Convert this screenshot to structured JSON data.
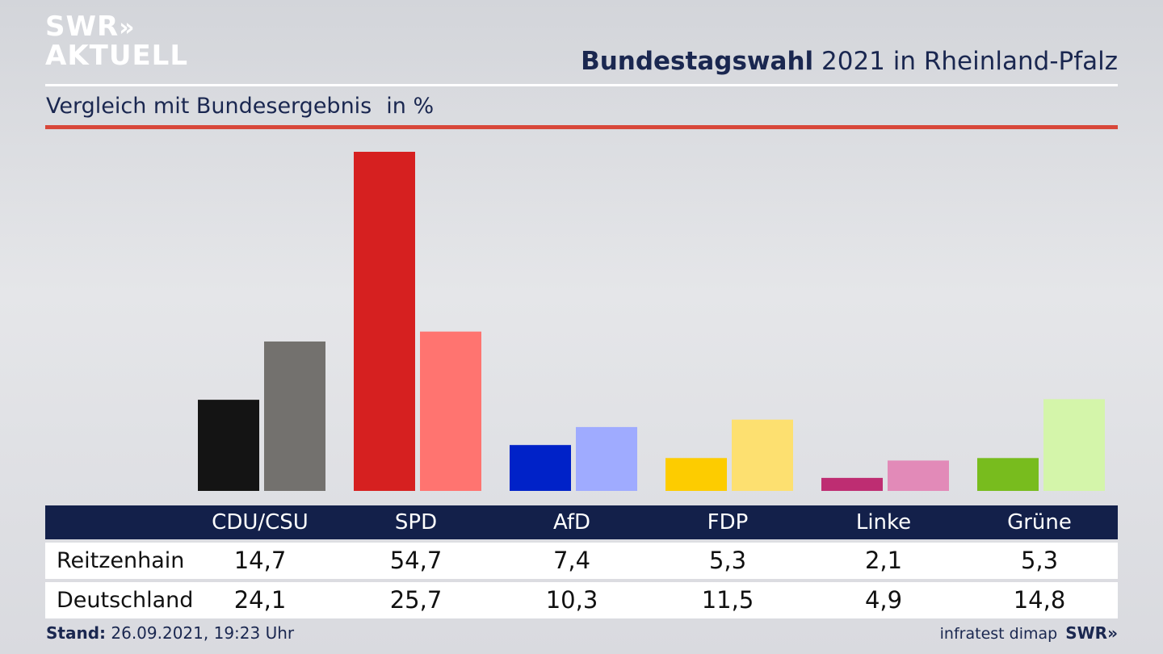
{
  "brand": {
    "logo_line1": "SWR",
    "logo_chevrons": "»",
    "logo_line2": "AKTUELL"
  },
  "header": {
    "title_bold": "Bundestagswahl",
    "title_rest": " 2021 in Rheinland-Pfalz"
  },
  "subtitle": {
    "text": "Vergleich mit Bundesergebnis",
    "unit": "in %"
  },
  "colors": {
    "title": "#1a2750",
    "red_rule": "#d8473a",
    "table_header": "#13204a",
    "local": [
      "#141414",
      "#d62020",
      "#0022c8",
      "#fdcc00",
      "#be2d72",
      "#78bc1e"
    ],
    "national": [
      "#73716e",
      "#ff7470",
      "#9fabff",
      "#fde070",
      "#e28ab8",
      "#d4f5aa"
    ]
  },
  "chart_data": {
    "type": "bar",
    "categories": [
      "CDU/CSU",
      "SPD",
      "AfD",
      "FDP",
      "Linke",
      "Grüne"
    ],
    "series": [
      {
        "name": "Reitzenhain",
        "values": [
          14.7,
          54.7,
          7.4,
          5.3,
          2.1,
          5.3
        ]
      },
      {
        "name": "Deutschland",
        "values": [
          24.1,
          25.7,
          10.3,
          11.5,
          4.9,
          14.8
        ]
      }
    ],
    "title": "Bundestagswahl 2021 in Rheinland-Pfalz",
    "subtitle": "Vergleich mit Bundesergebnis",
    "unit": "in %",
    "ylim": [
      0,
      54.7
    ],
    "grid": false
  },
  "table": {
    "headers": [
      "CDU/CSU",
      "SPD",
      "AfD",
      "FDP",
      "Linke",
      "Grüne"
    ],
    "rows": [
      {
        "label": "Reitzenhain",
        "values": [
          "14,7",
          "54,7",
          "7,4",
          "5,3",
          "2,1",
          "5,3"
        ]
      },
      {
        "label": "Deutschland",
        "values": [
          "24,1",
          "25,7",
          "10,3",
          "11,5",
          "4,9",
          "14,8"
        ]
      }
    ]
  },
  "footer": {
    "stand_label": "Stand:",
    "stand_value": " 26.09.2021, 19:23 Uhr",
    "source": "infratest dimap",
    "brand": "SWR»"
  }
}
